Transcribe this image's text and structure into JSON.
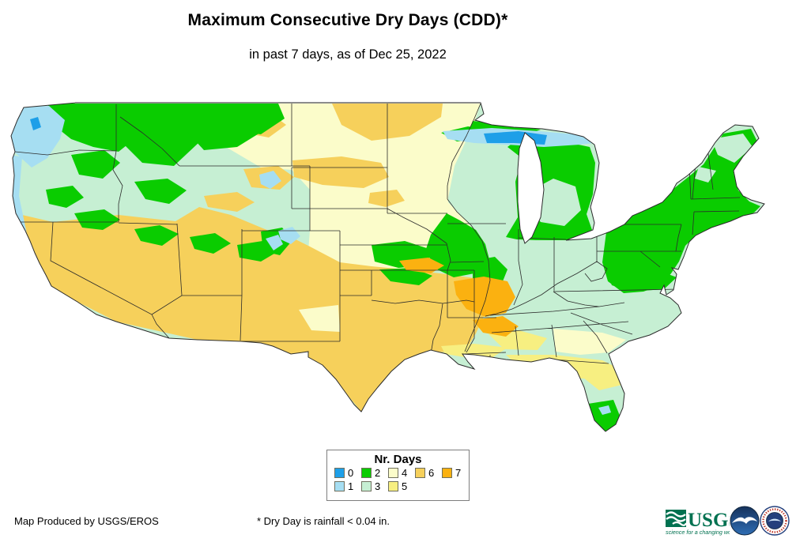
{
  "header": {
    "title": "Maximum Consecutive Dry Days (CDD)*",
    "subtitle": "in past 7 days, as of Dec 25, 2022"
  },
  "legend": {
    "title": "Nr. Days",
    "items": [
      {
        "label": "0",
        "color": "#1E9FE8"
      },
      {
        "label": "1",
        "color": "#A6DEF2"
      },
      {
        "label": "2",
        "color": "#0ACC00"
      },
      {
        "label": "3",
        "color": "#C6EFD3"
      },
      {
        "label": "4",
        "color": "#FBFCCA"
      },
      {
        "label": "5",
        "color": "#F7EF81"
      },
      {
        "label": "6",
        "color": "#F6D05B"
      },
      {
        "label": "7",
        "color": "#FBB110"
      }
    ],
    "rows": [
      [
        "0",
        "2",
        "4",
        "6",
        "7"
      ],
      [
        "1",
        "3",
        "5"
      ]
    ]
  },
  "map": {
    "base_value": "3",
    "patches": [
      {
        "v": "4",
        "p": "250,131 608,131 600,150 575,205 567,245 567,290 565,312 540,320 470,325 420,318 392,300 392,240 369,215 330,212 262,172"
      },
      {
        "v": "4",
        "p": "490,131 608,131 600,155 575,210 566,255 592,282 612,308 620,332 572,338 505,338 468,325 470,268 488,228"
      },
      {
        "v": "4",
        "p": "392,292 430,296 470,302 525,316 545,332 522,342 460,348 430,362 398,346 390,318"
      },
      {
        "v": "4",
        "p": "700,416 762,421 792,430 770,446 734,449 703,445"
      },
      {
        "v": "6",
        "p": "420,131 560,131 558,148 518,172 470,178 432,158"
      },
      {
        "v": "6",
        "p": "370,203 432,198 482,206 492,224 460,238 408,234 372,224"
      },
      {
        "v": "6",
        "p": "468,244 502,240 512,254 488,262 466,257"
      },
      {
        "v": "6",
        "p": "298,148 342,143 362,158 340,174 308,168"
      },
      {
        "v": "6",
        "p": "308,214 352,210 372,224 354,240 318,237"
      },
      {
        "v": "6",
        "p": "258,248 300,243 322,256 300,268 263,262"
      },
      {
        "v": "6",
        "p": "28,272 67,281 150,272 222,280 252,262 292,272 340,292 372,302 392,312 430,332 470,337 522,342 565,347 600,352 614,372 616,392 602,422 590,442 565,446 540,444 512,456 478,491 457,521 438,498 408,462 368,449 330,435 250,430 147,407 98,382 62,360 50,333 38,305 20,270"
      },
      {
        "v": "4",
        "p": "378,392 428,386 430,420 394,418"
      },
      {
        "v": "5",
        "p": "640,449 700,449 762,456 782,466 770,481 735,479 700,471 655,463"
      },
      {
        "v": "5",
        "p": "732,459 782,463 787,487 758,494 738,478"
      },
      {
        "v": "5",
        "p": "558,438 600,435 642,440 622,453 588,452 563,448"
      },
      {
        "v": "5",
        "p": "618,423 656,418 692,428 680,443 638,442"
      },
      {
        "v": "2",
        "p": "60,131 352,131 360,150 330,170 300,166 262,176 230,162 200,182 170,176 150,192 118,186 90,176 70,160"
      },
      {
        "v": "2",
        "p": "150,150 230,144 252,180 220,210 180,206 154,180"
      },
      {
        "v": "2",
        "p": "230,131 332,131 342,160 300,186 258,190 234,164"
      },
      {
        "v": "2",
        "p": "90,196 132,190 152,206 130,226 100,221"
      },
      {
        "v": "2",
        "p": "170,230 212,226 236,241 214,258 184,252"
      },
      {
        "v": "2",
        "p": "58,240 92,235 106,250 84,263 62,258"
      },
      {
        "v": "2",
        "p": "94,270 132,265 152,278 130,291 104,288"
      },
      {
        "v": "2",
        "p": "170,290 202,285 226,296 205,311 178,305"
      },
      {
        "v": "2",
        "p": "240,300 272,295 292,308 270,321 246,315"
      },
      {
        "v": "2",
        "p": "300,310 332,305 352,318 330,331 303,326"
      },
      {
        "v": "2",
        "p": "330,293 357,288 370,304 354,323 333,318"
      },
      {
        "v": "2",
        "p": "545,297 565,270 582,279 602,291 614,309 620,332 600,346 574,351 553,341 538,318"
      },
      {
        "v": "2",
        "p": "598,330 626,325 642,341 634,361 614,369 598,356"
      },
      {
        "v": "2",
        "p": "598,371 626,363 640,376 629,393 607,391"
      },
      {
        "v": "2",
        "p": "470,310 512,305 546,316 540,336 504,339 474,331"
      },
      {
        "v": "2",
        "p": "480,341 522,339 547,349 530,361 494,356"
      },
      {
        "v": "2",
        "p": "640,300 655,275 652,230 660,200 642,186 662,171 692,176 722,181 746,186 753,206 750,246 742,271 749,291 716,304 678,304 654,303"
      },
      {
        "v": "3",
        "p": "672,241 700,226 728,236 735,266 714,286 684,281 669,262"
      },
      {
        "v": "2",
        "p": "558,168 592,160 616,163 608,176 578,179"
      },
      {
        "v": "2",
        "p": "598,153 642,158 684,164 662,172 620,169 594,163"
      },
      {
        "v": "2",
        "p": "762,332 768,286 790,256 830,253 852,239 872,223 890,208 915,169 950,163 958,179 940,201 928,219 934,241 948,255 962,261 954,269 924,281 899,290 877,301 867,311 859,331 849,346 837,361 814,369 789,371 769,356"
      },
      {
        "v": "3",
        "p": "900,176 940,169 952,186 929,206 908,196"
      },
      {
        "v": "3",
        "p": "884,211 906,216 896,231 879,226"
      },
      {
        "v": "2",
        "p": "768,346 830,341 856,351 840,366 799,369 774,361"
      },
      {
        "v": "2",
        "p": "744,511 776,506 784,526 779,538 766,547 751,533 743,516"
      },
      {
        "v": "1",
        "p": "757,516 770,513 773,522 762,525"
      },
      {
        "v": "7",
        "p": "574,356 612,350 642,356 652,376 640,396 614,401 590,391 577,373"
      },
      {
        "v": "7",
        "p": "598,405 636,400 656,413 640,426 611,421"
      },
      {
        "v": "7",
        "p": "505,330 542,326 562,336 545,346 514,342"
      },
      {
        "v": "1",
        "p": "14,172 22,150 30,136 62,134 82,152 76,176 60,200 40,212 19,193"
      },
      {
        "v": "1",
        "p": "15,196 28,199 24,248 34,296 45,323 36,332 22,302 13,250"
      },
      {
        "v": "1",
        "p": "560,166 622,162 682,166 738,171 752,181 734,183 688,186 640,183 600,181 566,176"
      },
      {
        "v": "1",
        "p": "328,221 346,216 356,229 342,239 330,233"
      },
      {
        "v": "1",
        "p": "352,292 370,287 380,299 368,309 355,303"
      },
      {
        "v": "1",
        "p": "336,302 352,297 358,309 346,317"
      },
      {
        "v": "0",
        "p": "612,169 656,166 692,171 689,183 650,181 616,181"
      },
      {
        "v": "0",
        "p": "13,344 22,341 25,359 16,362"
      },
      {
        "v": "0",
        "p": "38,151 48,148 52,161 42,165"
      }
    ]
  },
  "footer": {
    "credit": "Map Produced by USGS/EROS",
    "footnote": "* Dry Day is rainfall < 0.04 in."
  },
  "logos": {
    "usgs": {
      "text": "USGS",
      "tagline": "science for a changing world",
      "color": "#007150"
    },
    "noaa": {
      "name": "noaa-logo"
    },
    "nws": {
      "name": "nws-logo"
    }
  }
}
